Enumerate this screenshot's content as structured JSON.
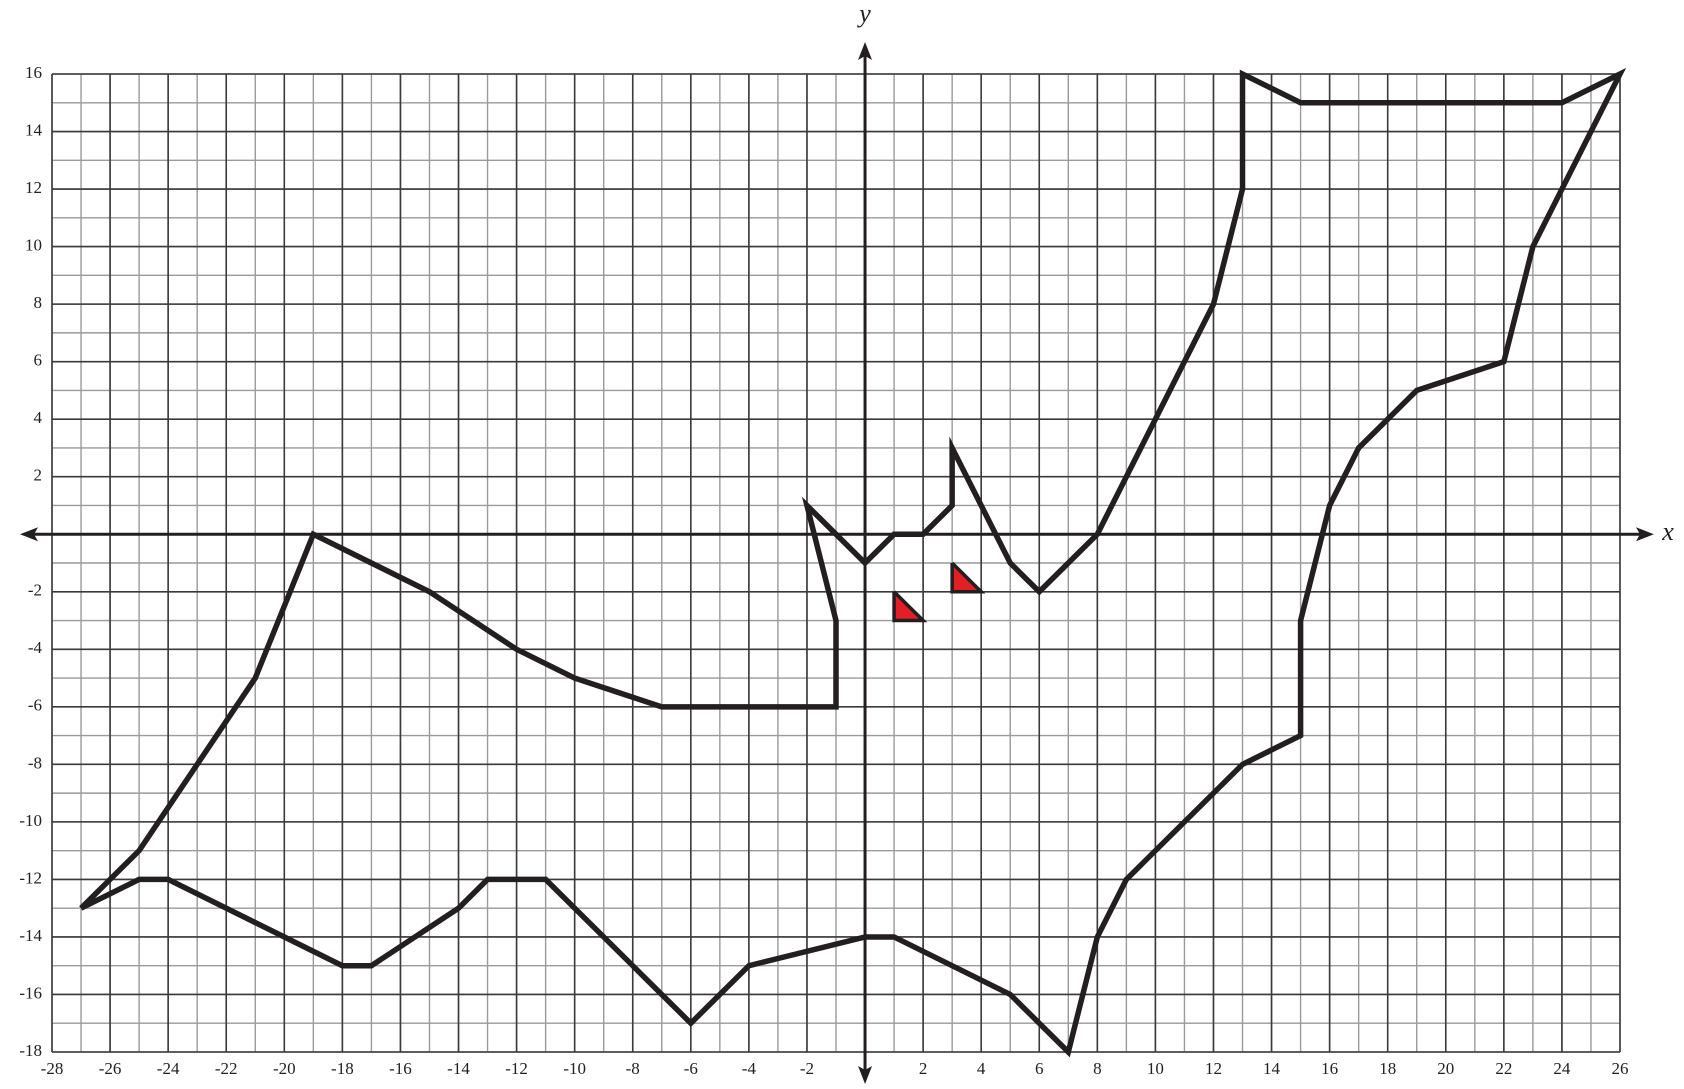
{
  "chart_data": {
    "type": "line",
    "x_label": "x",
    "y_label": "y",
    "xlim": [
      -28,
      26
    ],
    "ylim": [
      -18,
      16
    ],
    "xticks": [
      -28,
      -26,
      -24,
      -22,
      -20,
      -18,
      -16,
      -14,
      -12,
      -10,
      -8,
      -6,
      -4,
      -2,
      2,
      4,
      6,
      8,
      10,
      12,
      14,
      16,
      18,
      20,
      22,
      24,
      26
    ],
    "yticks": [
      -18,
      -16,
      -14,
      -12,
      -10,
      -8,
      -6,
      -4,
      -2,
      2,
      4,
      6,
      8,
      10,
      12,
      14,
      16
    ],
    "grid": true,
    "series": [
      {
        "color": "#231f20",
        "x": [
          -27,
          -25,
          -21,
          -19,
          -15,
          -12,
          -10,
          -7,
          -1,
          -1,
          -2,
          0,
          1,
          2,
          3,
          3,
          5,
          6,
          8,
          12,
          13,
          13,
          15,
          24,
          26,
          24,
          23,
          22,
          19,
          17,
          16,
          15,
          15,
          13,
          9,
          8,
          7,
          5,
          1,
          0,
          -4,
          -6,
          -11,
          -13,
          -14,
          -17,
          -18,
          -24,
          -25,
          -27
        ],
        "values": [
          -13,
          -11,
          -5,
          0,
          -2,
          -4,
          -5,
          -6,
          -6,
          -3,
          1,
          -1,
          0,
          0,
          1,
          3,
          -1,
          -2,
          0,
          8,
          12,
          16,
          15,
          15,
          16,
          12,
          10,
          6,
          5,
          3,
          1,
          -3,
          -7,
          -8,
          -12,
          -14,
          -18,
          -16,
          -14,
          -14,
          -15,
          -17,
          -12,
          -12,
          -13,
          -15,
          -15,
          -12,
          -12,
          -13
        ]
      },
      {
        "color": "#231f20",
        "fill": "#e31e24",
        "x": [
          1,
          1,
          2,
          1
        ],
        "values": [
          -2,
          -3,
          -3,
          -2
        ]
      },
      {
        "color": "#231f20",
        "fill": "#e31e24",
        "x": [
          3,
          3,
          4,
          3
        ],
        "values": [
          -1,
          -2,
          -2,
          -1
        ]
      }
    ]
  }
}
